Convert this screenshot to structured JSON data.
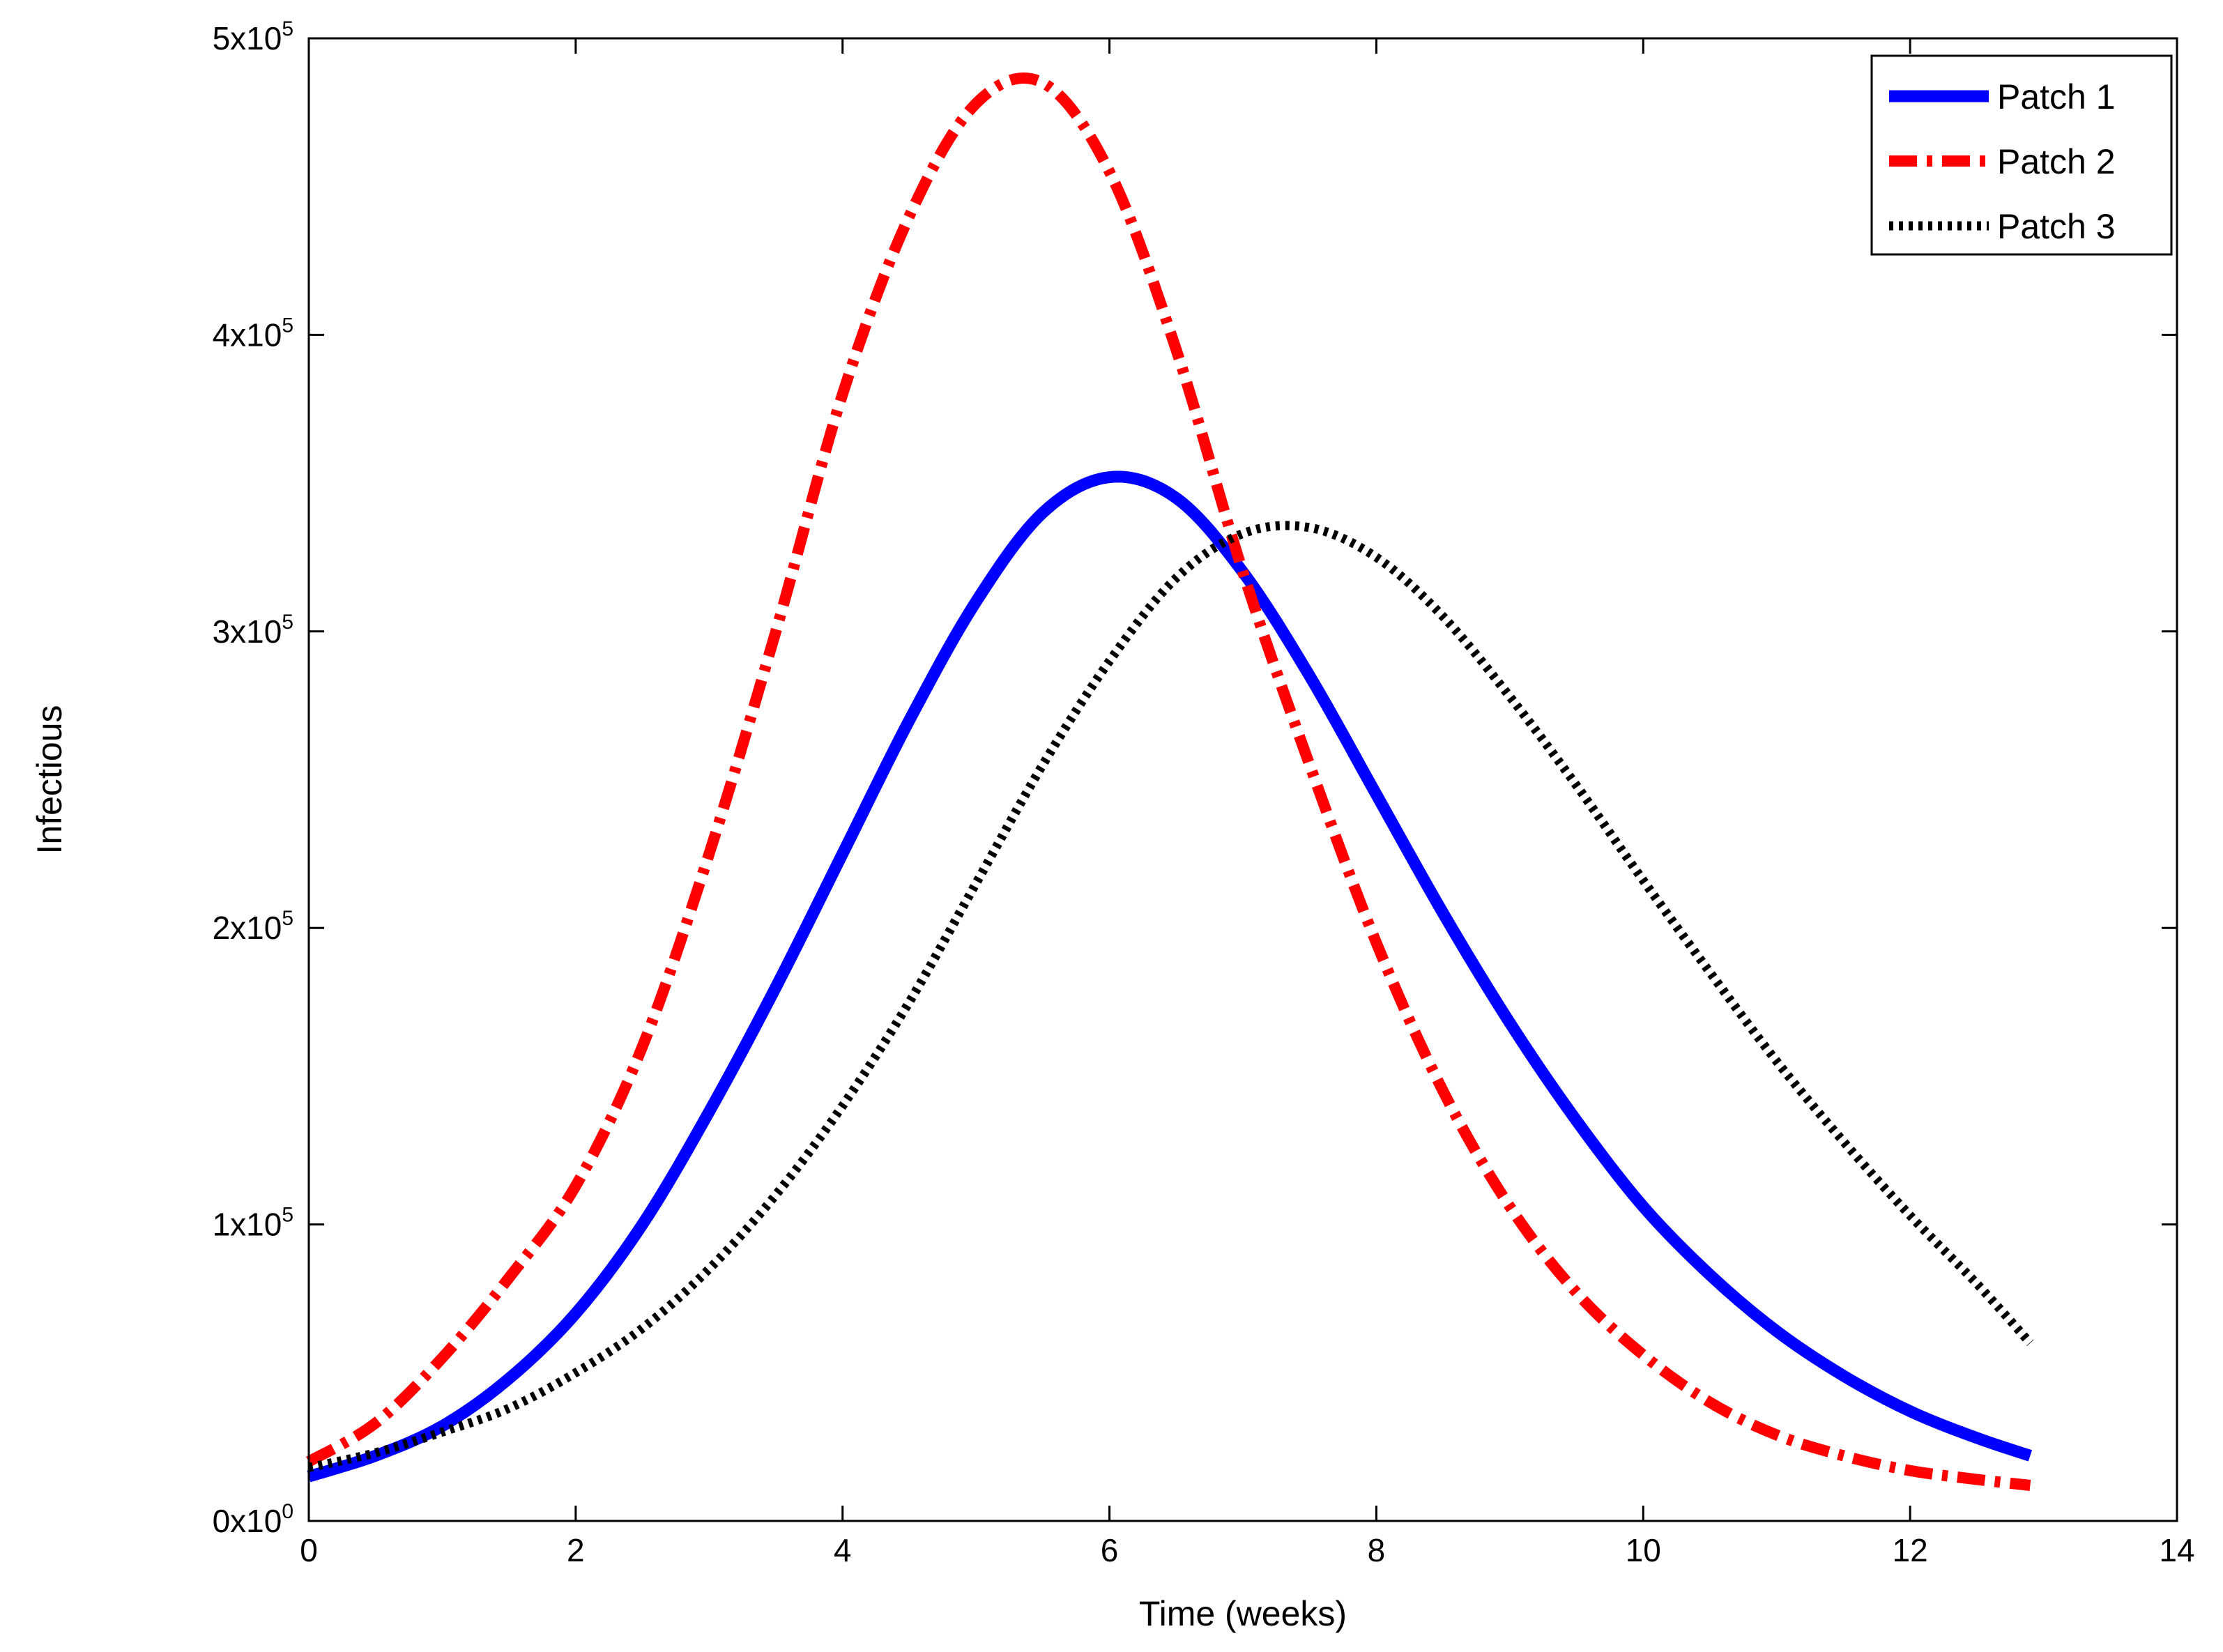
{
  "chart_data": {
    "type": "line",
    "title": "",
    "xlabel": "Time (weeks)",
    "ylabel": "Infectious",
    "xlim": [
      0,
      14
    ],
    "ylim": [
      0,
      500000
    ],
    "grid": false,
    "legend_position": "top-right",
    "x_ticks": [
      0,
      2,
      4,
      6,
      8,
      10,
      12,
      14
    ],
    "x_tick_labels": [
      "0",
      "2",
      "4",
      "6",
      "8",
      "10",
      "12",
      "14"
    ],
    "y_ticks": [
      0,
      100000,
      200000,
      300000,
      400000,
      500000
    ],
    "y_tick_labels": [
      {
        "mantissa": "0x10",
        "exponent": "0"
      },
      {
        "mantissa": "1x10",
        "exponent": "5"
      },
      {
        "mantissa": "2x10",
        "exponent": "5"
      },
      {
        "mantissa": "3x10",
        "exponent": "5"
      },
      {
        "mantissa": "4x10",
        "exponent": "5"
      },
      {
        "mantissa": "5x10",
        "exponent": "5"
      }
    ],
    "x": [
      0,
      0.5,
      1,
      1.5,
      2,
      2.5,
      3,
      3.5,
      4,
      4.5,
      5,
      5.5,
      6,
      6.5,
      7,
      7.5,
      8,
      8.5,
      9,
      9.5,
      10,
      10.5,
      11,
      11.5,
      12,
      12.5,
      12.9
    ],
    "series": [
      {
        "name": "Patch 1",
        "color": "#0000ff",
        "style": "solid",
        "values": [
          15000,
          22000,
          32000,
          48000,
          70000,
          100000,
          138000,
          180000,
          225000,
          270000,
          310000,
          340000,
          352000,
          345000,
          320000,
          285000,
          245000,
          205000,
          168000,
          135000,
          106000,
          83000,
          64000,
          49000,
          37000,
          28000,
          22000
        ]
      },
      {
        "name": "Patch 2",
        "color": "#ff0000",
        "style": "dashdot",
        "values": [
          20000,
          33000,
          55000,
          82000,
          113000,
          160000,
          225000,
          300000,
          380000,
          440000,
          478000,
          485000,
          455000,
          395000,
          320000,
          255000,
          195000,
          145000,
          106000,
          77000,
          56000,
          40000,
          29000,
          22000,
          17000,
          14000,
          12000
        ]
      },
      {
        "name": "Patch 3",
        "color": "#000000",
        "style": "dotted",
        "values": [
          18000,
          23000,
          30000,
          38000,
          50000,
          65000,
          85000,
          110000,
          140000,
          175000,
          215000,
          255000,
          290000,
          318000,
          333000,
          335000,
          325000,
          305000,
          278000,
          248000,
          216000,
          185000,
          155000,
          128000,
          103000,
          80000,
          60000
        ]
      }
    ]
  }
}
